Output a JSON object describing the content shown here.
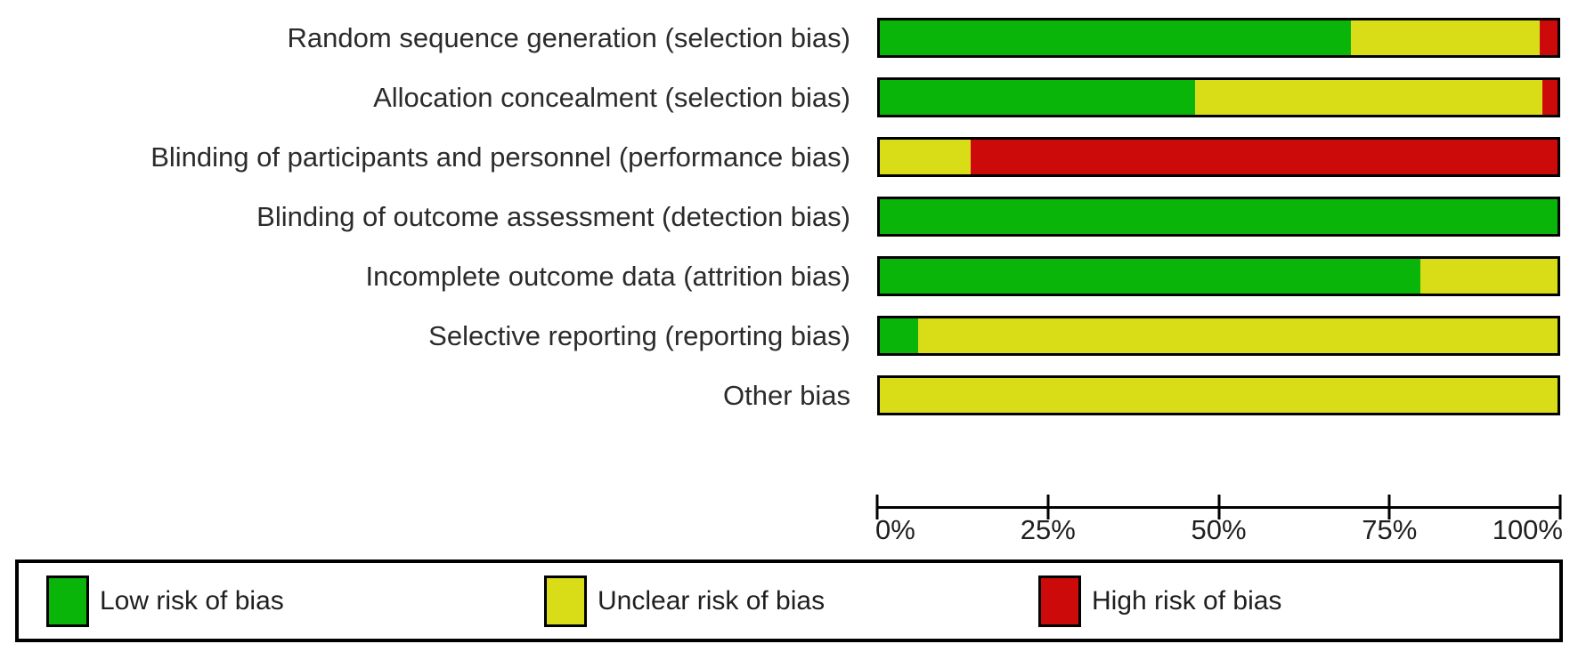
{
  "figure": {
    "title": "",
    "axis_ticks": [
      "0%",
      "25%",
      "50%",
      "75%",
      "100%"
    ],
    "legend": [
      {
        "key": "low",
        "label": "Low risk of bias",
        "color": "#09b509"
      },
      {
        "key": "unclear",
        "label": "Unclear risk of bias",
        "color": "#d8dd17"
      },
      {
        "key": "high",
        "label": "High risk of bias",
        "color": "#cd0a0a"
      }
    ]
  },
  "chart_data": {
    "type": "bar",
    "orientation": "horizontal-stacked",
    "categories": [
      "Random sequence generation (selection bias)",
      "Allocation concealment (selection bias)",
      "Blinding of participants and personnel (performance bias)",
      "Blinding of outcome assessment (detection bias)",
      "Incomplete outcome data (attrition bias)",
      "Selective reporting (reporting bias)",
      "Other bias"
    ],
    "series": [
      {
        "name": "Low risk of bias",
        "key": "low",
        "color": "#09b509",
        "values": [
          69.5,
          46.5,
          0,
          100,
          79.8,
          5.6,
          0
        ]
      },
      {
        "name": "Unclear risk of bias",
        "key": "unclear",
        "color": "#d8dd17",
        "values": [
          27.9,
          51.3,
          13.4,
          0,
          20.2,
          94.4,
          100
        ]
      },
      {
        "name": "High risk of bias",
        "key": "high",
        "color": "#cd0a0a",
        "values": [
          2.6,
          2.2,
          86.6,
          0,
          0,
          0,
          0
        ]
      }
    ],
    "x_ticks": [
      "0%",
      "25%",
      "50%",
      "75%",
      "100%"
    ],
    "x_tick_positions": [
      0,
      25,
      50,
      75,
      100
    ],
    "xlim": [
      0,
      100
    ],
    "xlabel": "",
    "ylabel": "",
    "grid": false,
    "legend_position": "bottom",
    "bar_border_color": "#000000"
  }
}
